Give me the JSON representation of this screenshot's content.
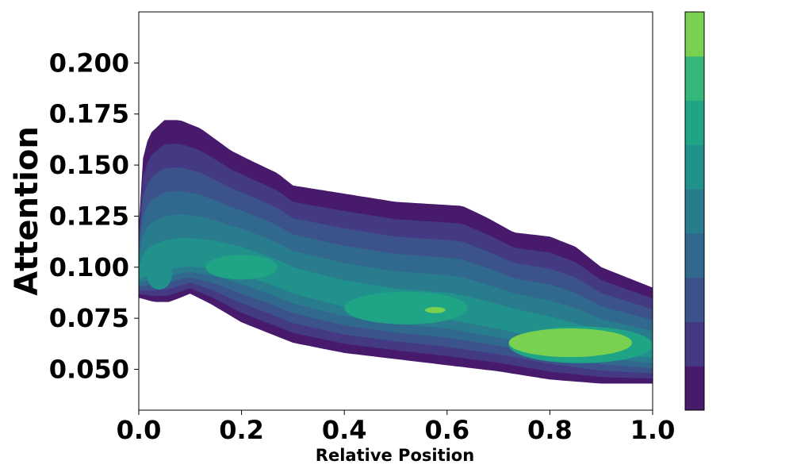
{
  "chart_data": {
    "type": "density_contour",
    "title": "",
    "xlabel": "Relative Position",
    "ylabel": "Attention",
    "xlim": [
      0.0,
      1.0
    ],
    "ylim": [
      0.03,
      0.225
    ],
    "xticks": [
      0.0,
      0.2,
      0.4,
      0.6,
      0.8,
      1.0
    ],
    "xtick_labels": [
      "0.0",
      "0.2",
      "0.4",
      "0.6",
      "0.8",
      "1.0"
    ],
    "yticks": [
      0.05,
      0.075,
      0.1,
      0.125,
      0.15,
      0.175,
      0.2
    ],
    "ytick_labels": [
      "0.050",
      "0.075",
      "0.100",
      "0.125",
      "0.150",
      "0.175",
      "0.200"
    ],
    "grid": false,
    "colorbar": {
      "position": "right",
      "tick_labels": false,
      "levels": 9
    },
    "level_colors": [
      "#481a6c",
      "#443983",
      "#3b528b",
      "#31688e",
      "#287c8e",
      "#21918c",
      "#20a486",
      "#35b779",
      "#7ad151"
    ],
    "center_line": {
      "x": [
        0.0,
        0.03,
        0.08,
        0.15,
        0.2,
        0.25,
        0.3,
        0.4,
        0.5,
        0.6,
        0.7,
        0.8,
        0.9,
        1.0
      ],
      "y": [
        0.096,
        0.1,
        0.103,
        0.103,
        0.101,
        0.097,
        0.092,
        0.085,
        0.081,
        0.079,
        0.074,
        0.068,
        0.062,
        0.058
      ]
    },
    "outer_top": {
      "x": [
        0.0,
        0.005,
        0.02,
        0.05,
        0.08,
        0.12,
        0.18,
        0.22,
        0.27,
        0.3,
        0.4,
        0.5,
        0.63,
        0.68,
        0.73,
        0.8,
        0.85,
        0.9,
        0.95,
        1.0
      ],
      "y": [
        0.12,
        0.15,
        0.165,
        0.172,
        0.172,
        0.168,
        0.157,
        0.152,
        0.146,
        0.14,
        0.136,
        0.132,
        0.13,
        0.124,
        0.117,
        0.115,
        0.11,
        0.1,
        0.095,
        0.09
      ]
    },
    "outer_bottom": {
      "x": [
        0.0,
        0.03,
        0.06,
        0.1,
        0.14,
        0.2,
        0.3,
        0.4,
        0.5,
        0.6,
        0.7,
        0.8,
        0.9,
        0.95,
        1.0
      ],
      "y": [
        0.085,
        0.083,
        0.083,
        0.087,
        0.082,
        0.073,
        0.063,
        0.058,
        0.055,
        0.052,
        0.049,
        0.045,
        0.043,
        0.043,
        0.043
      ]
    },
    "hotspots": [
      {
        "x": 0.2,
        "y": 0.1,
        "rx": 0.07,
        "ry": 0.006,
        "level": 6
      },
      {
        "x": 0.52,
        "y": 0.08,
        "rx": 0.12,
        "ry": 0.008,
        "level": 6
      },
      {
        "x": 0.577,
        "y": 0.079,
        "rx": 0.02,
        "ry": 0.0015,
        "level": 8
      },
      {
        "x": 0.86,
        "y": 0.062,
        "rx": 0.14,
        "ry": 0.009,
        "level": 6
      },
      {
        "x": 0.84,
        "y": 0.063,
        "rx": 0.12,
        "ry": 0.007,
        "level": 8
      },
      {
        "x": 0.04,
        "y": 0.097,
        "rx": 0.025,
        "ry": 0.008,
        "level": 5
      }
    ]
  }
}
